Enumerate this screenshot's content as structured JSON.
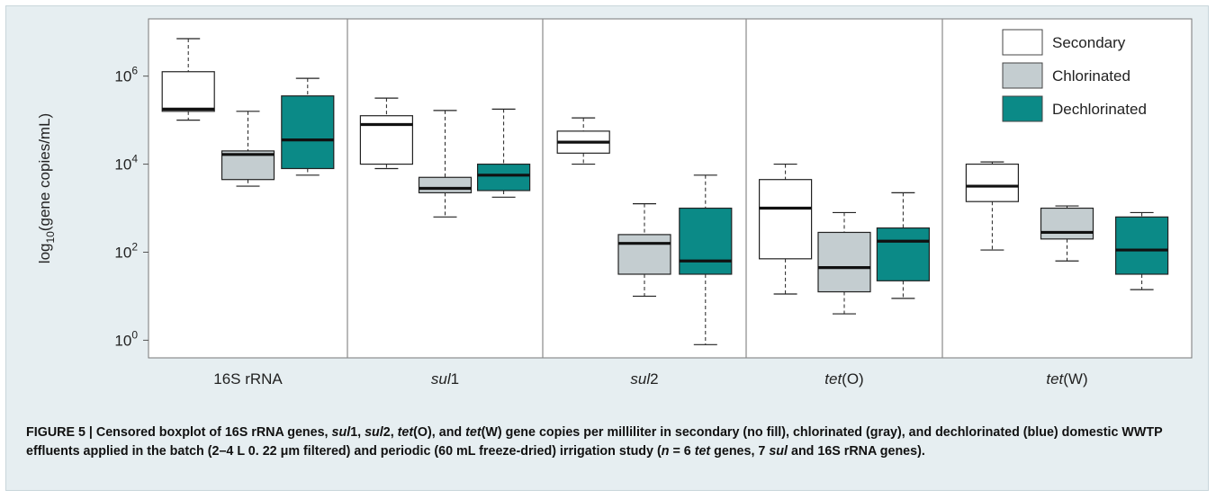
{
  "chart_data": {
    "type": "boxplot",
    "scale": "log",
    "ylabel": {
      "prefix": "log",
      "sub": "10",
      "suffix": "(gene copies/mL)"
    },
    "yticks": [
      {
        "value": 0,
        "base": "10",
        "exp": "0"
      },
      {
        "value": 2,
        "base": "10",
        "exp": "2"
      },
      {
        "value": 4,
        "base": "10",
        "exp": "4"
      },
      {
        "value": 6,
        "base": "10",
        "exp": "6"
      }
    ],
    "ylim_log10": [
      -0.4,
      7.3
    ],
    "categories": [
      {
        "name": "16S rRNA",
        "prefix": "",
        "italic": "",
        "suffix": "16S rRNA"
      },
      {
        "name": "sul1",
        "prefix": "",
        "italic": "sul",
        "suffix": "1"
      },
      {
        "name": "sul2",
        "prefix": "",
        "italic": "sul",
        "suffix": "2"
      },
      {
        "name": "tet(O)",
        "prefix": "",
        "italic": "tet",
        "suffix": "(O)"
      },
      {
        "name": "tet(W)",
        "prefix": "",
        "italic": "tet",
        "suffix": "(W)"
      }
    ],
    "series": [
      {
        "name": "Secondary",
        "color": "#ffffff"
      },
      {
        "name": "Chlorinated",
        "color": "#c4cdd0"
      },
      {
        "name": "Dechlorinated",
        "color": "#0b8a87"
      }
    ],
    "boxes_log10": [
      [
        {
          "whisker_low": 5.0,
          "q1": 5.2,
          "median": 5.25,
          "q3": 6.1,
          "whisker_high": 6.85
        },
        {
          "whisker_low": 3.5,
          "q1": 3.65,
          "median": 4.22,
          "q3": 4.3,
          "whisker_high": 5.2
        },
        {
          "whisker_low": 3.75,
          "q1": 3.9,
          "median": 4.55,
          "q3": 5.55,
          "whisker_high": 5.95
        }
      ],
      [
        {
          "whisker_low": 3.9,
          "q1": 4.0,
          "median": 4.9,
          "q3": 5.1,
          "whisker_high": 5.5
        },
        {
          "whisker_low": 2.8,
          "q1": 3.35,
          "median": 3.45,
          "q3": 3.7,
          "whisker_high": 5.22
        },
        {
          "whisker_low": 3.25,
          "q1": 3.4,
          "median": 3.75,
          "q3": 4.0,
          "whisker_high": 5.25
        }
      ],
      [
        {
          "whisker_low": 4.0,
          "q1": 4.25,
          "median": 4.5,
          "q3": 4.75,
          "whisker_high": 5.05
        },
        {
          "whisker_low": 1.0,
          "q1": 1.5,
          "median": 2.2,
          "q3": 2.4,
          "whisker_high": 3.1
        },
        {
          "whisker_low": -0.1,
          "q1": 1.5,
          "median": 1.8,
          "q3": 3.0,
          "whisker_high": 3.75
        }
      ],
      [
        {
          "whisker_low": 1.05,
          "q1": 1.85,
          "median": 3.0,
          "q3": 3.65,
          "whisker_high": 4.0
        },
        {
          "whisker_low": 0.6,
          "q1": 1.1,
          "median": 1.65,
          "q3": 2.45,
          "whisker_high": 2.9
        },
        {
          "whisker_low": 0.95,
          "q1": 1.35,
          "median": 2.25,
          "q3": 2.55,
          "whisker_high": 3.35
        }
      ],
      [
        {
          "whisker_low": 2.05,
          "q1": 3.15,
          "median": 3.5,
          "q3": 4.0,
          "whisker_high": 4.05
        },
        {
          "whisker_low": 1.8,
          "q1": 2.3,
          "median": 2.45,
          "q3": 3.0,
          "whisker_high": 3.05
        },
        {
          "whisker_low": 1.15,
          "q1": 1.5,
          "median": 2.05,
          "q3": 2.8,
          "whisker_high": 2.9
        }
      ]
    ],
    "legend_position": "top-right",
    "grid": false
  },
  "caption": {
    "lead": "FIGURE 5 | Censored boxplot of 16S rRNA genes, ",
    "g1": "sul",
    "g1b": "1, ",
    "g2": "sul",
    "g2b": "2, ",
    "g3": "tet",
    "g3b": "(O), and ",
    "g4": "tet",
    "g4b": "(W) gene copies per milliliter in secondary (no fill), chlorinated (gray), and dechlorinated (blue) domestic WWTP effluents applied in the batch (2–4 L 0. 22 μm filtered) and periodic (60 mL freeze-dried) irrigation study (",
    "n": "n",
    "nb": " = 6 ",
    "g5": "tet",
    "g5b": " genes, 7 ",
    "g6": "sul",
    "g6b": " and 16S rRNA genes)."
  }
}
